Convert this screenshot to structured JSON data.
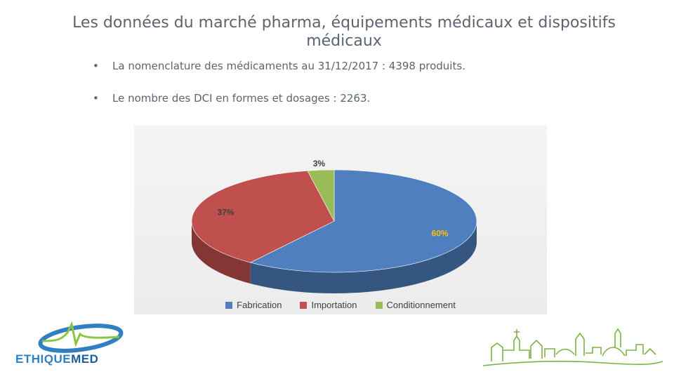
{
  "slide": {
    "title": "Les données du  marché pharma, équipements médicaux et dispositifs médicaux",
    "bullets": [
      "La nomenclature des médicaments au 31/12/2017 : 4398 produits.",
      "Le nombre des DCI en formes et dosages : 2263."
    ],
    "bullet_char": "•"
  },
  "chart_data": {
    "type": "pie",
    "style": "3d",
    "categories": [
      "Fabrication",
      "Importation",
      "Conditionnement"
    ],
    "values": [
      60,
      37,
      3
    ],
    "labels": [
      "60%",
      "37%",
      "3%"
    ],
    "colors": [
      "#4f7fbf",
      "#c0504d",
      "#9bbb59"
    ],
    "label_colors": [
      "#ffc000",
      "#404040",
      "#404040"
    ],
    "legend_position": "bottom"
  },
  "logos": {
    "left_brand": "ETHIQUEMED",
    "left_brand_part1": "ETHIQUE",
    "left_brand_part2": "MED"
  }
}
